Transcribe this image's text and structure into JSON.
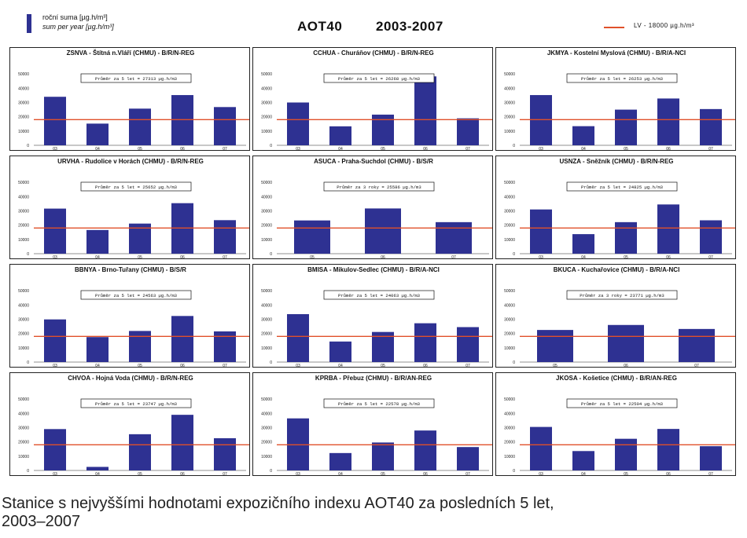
{
  "legend": {
    "line1": "roční suma [µg.h/m³]",
    "line2": "sum per year [µg.h/m³]"
  },
  "title": {
    "name": "AOT40",
    "years": "2003-2007"
  },
  "lv_legend": "LV   - 18000 µg.h/m³",
  "caption": {
    "line1": "Stanice s nejvyššími hodnotami expozičního indexu AOT40 za posledních 5 let,",
    "line2": "2003–2007"
  },
  "colors": {
    "bar": "#2e3192",
    "limit": "#e0502a"
  },
  "chart_data": [
    {
      "type": "bar",
      "title": "ZSNVA - Štítná n.Vláří (CHMU) - B/R/N-REG",
      "categories": [
        "03",
        "04",
        "05",
        "06",
        "07"
      ],
      "values": [
        34000,
        15200,
        25700,
        35200,
        26800
      ],
      "limit": 18000,
      "ylim": [
        0,
        60000
      ],
      "yticks": [
        "0",
        "10000",
        "20000",
        "30000",
        "40000",
        "50000"
      ],
      "avg_label": "Průměr za 5 let = 27313 µg.h/m3"
    },
    {
      "type": "bar",
      "title": "CCHUA - Churáňov (CHMU) - B/R/N-REG",
      "categories": [
        "03",
        "04",
        "05",
        "06",
        "07"
      ],
      "values": [
        30000,
        13300,
        21500,
        48300,
        18900
      ],
      "limit": 18000,
      "ylim": [
        0,
        60000
      ],
      "yticks": [
        "0",
        "10000",
        "20000",
        "30000",
        "40000",
        "50000"
      ],
      "avg_label": "Průměr za 5 let = 26268 µg.h/m3"
    },
    {
      "type": "bar",
      "title": "JKMYA - Kostelní Myslová (CHMU) - B/R/A-NCI",
      "categories": [
        "03",
        "04",
        "05",
        "06",
        "07"
      ],
      "values": [
        35200,
        13400,
        25000,
        32800,
        25400
      ],
      "limit": 18000,
      "ylim": [
        0,
        60000
      ],
      "yticks": [
        "0",
        "10000",
        "20000",
        "30000",
        "40000",
        "50000"
      ],
      "avg_label": "Průměr za 5 let = 26253 µg.h/m3"
    },
    {
      "type": "bar",
      "title": "URVHA - Rudolice v Horách (CHMU) - B/R/N-REG",
      "categories": [
        "03",
        "04",
        "05",
        "06",
        "07"
      ],
      "values": [
        31600,
        16600,
        21100,
        35400,
        23500
      ],
      "limit": 18000,
      "ylim": [
        0,
        60000
      ],
      "yticks": [
        "0",
        "10000",
        "20000",
        "30000",
        "40000",
        "50000"
      ],
      "avg_label": "Průměr za 5 let = 25652 µg.h/m3"
    },
    {
      "type": "bar",
      "title": "ASUCA - Praha-Suchdol (CHMU) - B/S/R",
      "categories": [
        "05",
        "06",
        "07"
      ],
      "values": [
        23300,
        31700,
        22100
      ],
      "limit": 18000,
      "ylim": [
        0,
        60000
      ],
      "yticks": [
        "0",
        "10000",
        "20000",
        "30000",
        "40000",
        "50000"
      ],
      "avg_label": "Průměr za 3 roky = 25586 µg.h/m3"
    },
    {
      "type": "bar",
      "title": "USNZA - Sněžník (CHMU) - B/R/N-REG",
      "categories": [
        "03",
        "04",
        "05",
        "06",
        "07"
      ],
      "values": [
        31000,
        13700,
        22100,
        34500,
        23400
      ],
      "limit": 18000,
      "ylim": [
        0,
        60000
      ],
      "yticks": [
        "0",
        "10000",
        "20000",
        "30000",
        "40000",
        "50000"
      ],
      "avg_label": "Průměr za 5 let = 24825 µg.h/m3"
    },
    {
      "type": "bar",
      "title": "BBNYA - Brno-Tuřany (CHMU) - B/S/R",
      "categories": [
        "03",
        "04",
        "05",
        "06",
        "07"
      ],
      "values": [
        29900,
        17500,
        21800,
        32300,
        21500
      ],
      "limit": 18000,
      "ylim": [
        0,
        60000
      ],
      "yticks": [
        "0",
        "10000",
        "20000",
        "30000",
        "40000",
        "50000"
      ],
      "avg_label": "Průměr za 5 let = 24563 µg.h/m3"
    },
    {
      "type": "bar",
      "title": "BMISA - Mikulov-Sedlec (CHMU) - B/R/A-NCI",
      "categories": [
        "03",
        "04",
        "05",
        "06",
        "07"
      ],
      "values": [
        33600,
        14400,
        21100,
        27200,
        24500
      ],
      "limit": 18000,
      "ylim": [
        0,
        60000
      ],
      "yticks": [
        "0",
        "10000",
        "20000",
        "30000",
        "40000",
        "50000"
      ],
      "avg_label": "Průměr za 5 let = 24063 µg.h/m3"
    },
    {
      "type": "bar",
      "title": "BKUCA - Kuchařovice (CHMU) - B/R/A-NCI",
      "categories": [
        "05",
        "06",
        "07"
      ],
      "values": [
        22500,
        26000,
        23200
      ],
      "limit": 18000,
      "ylim": [
        0,
        60000
      ],
      "yticks": [
        "0",
        "10000",
        "20000",
        "30000",
        "40000",
        "50000"
      ],
      "avg_label": "Průměr za 3 roky = 23771 µg.h/m3"
    },
    {
      "type": "bar",
      "title": "CHVOA - Hojná Voda (CHMU) - B/R/N-REG",
      "categories": [
        "03",
        "04",
        "05",
        "06",
        "07"
      ],
      "values": [
        29000,
        2500,
        25400,
        39000,
        22600
      ],
      "limit": 18000,
      "ylim": [
        0,
        60000
      ],
      "yticks": [
        "0",
        "10000",
        "20000",
        "30000",
        "40000",
        "50000"
      ],
      "avg_label": "Průměr za 5 let = 23747 µg.h/m3"
    },
    {
      "type": "bar",
      "title": "KPRBA - Přebuz (CHMU) - B/R/AN-REG",
      "categories": [
        "03",
        "04",
        "05",
        "06",
        "07"
      ],
      "values": [
        36500,
        12200,
        19600,
        28000,
        16400
      ],
      "limit": 18000,
      "ylim": [
        0,
        60000
      ],
      "yticks": [
        "0",
        "10000",
        "20000",
        "30000",
        "40000",
        "50000"
      ],
      "avg_label": "Průměr za 5 let = 22578 µg.h/m3"
    },
    {
      "type": "bar",
      "title": "JKOSA - Košetice (CHMU) - B/R/AN-REG",
      "categories": [
        "03",
        "04",
        "05",
        "06",
        "07"
      ],
      "values": [
        30500,
        13600,
        22200,
        29100,
        17000
      ],
      "limit": 18000,
      "ylim": [
        0,
        60000
      ],
      "yticks": [
        "0",
        "10000",
        "20000",
        "30000",
        "40000",
        "50000"
      ],
      "avg_label": "Průměr za 5 let = 22504 µg.h/m3"
    }
  ]
}
